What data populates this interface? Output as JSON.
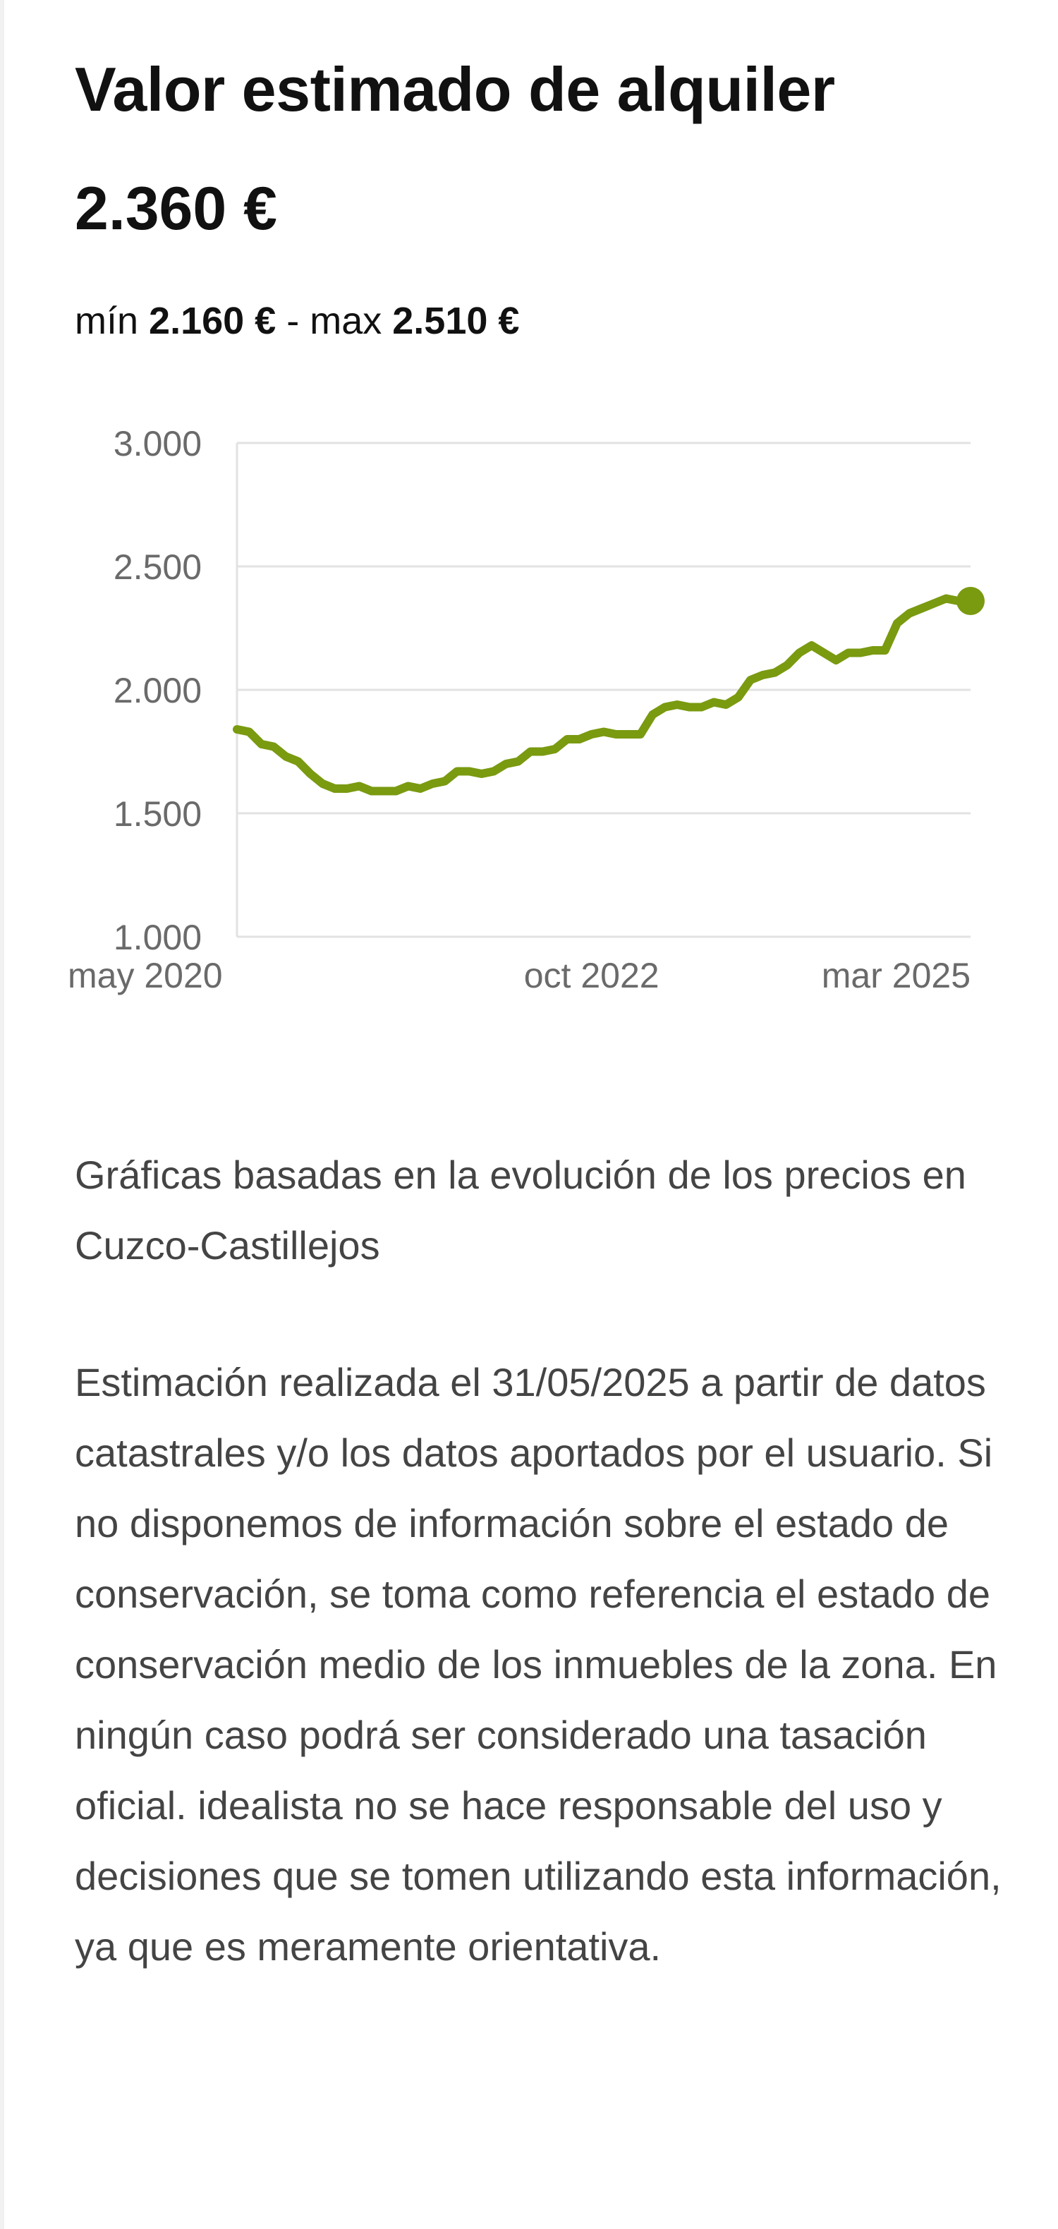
{
  "header": {
    "title": "Valor estimado de alquiler",
    "price": "2.360 €",
    "range_min_label": "mín",
    "range_min_value": "2.160 €",
    "range_separator": "-",
    "range_max_label": "max",
    "range_max_value": "2.510 €"
  },
  "colors": {
    "line": "#7a9a10",
    "grid": "#e2e2e2",
    "axis_text": "#6a6a6a"
  },
  "chart_data": {
    "type": "line",
    "title": "",
    "xlabel": "",
    "ylabel": "",
    "ylim": [
      1000,
      3000
    ],
    "xlim": [
      "2020-05",
      "2025-05"
    ],
    "y_ticks": [
      "3.000",
      "2.500",
      "2.000",
      "1.500",
      "1.000"
    ],
    "y_tick_values": [
      3000,
      2500,
      2000,
      1500,
      1000
    ],
    "x_ticks": [
      "may 2020",
      "oct 2022",
      "mar 2025"
    ],
    "x_tick_values": [
      "2020-05",
      "2022-10",
      "2025-03"
    ],
    "grid": true,
    "legend": "none",
    "series": [
      {
        "x": [
          "2020-05",
          "2020-06",
          "2020-07",
          "2020-08",
          "2020-09",
          "2020-10",
          "2020-11",
          "2020-12",
          "2021-01",
          "2021-02",
          "2021-03",
          "2021-04",
          "2021-05",
          "2021-06",
          "2021-07",
          "2021-08",
          "2021-09",
          "2021-10",
          "2021-11",
          "2021-12",
          "2022-01",
          "2022-02",
          "2022-03",
          "2022-04",
          "2022-05",
          "2022-06",
          "2022-07",
          "2022-08",
          "2022-09",
          "2022-10",
          "2022-11",
          "2022-12",
          "2023-01",
          "2023-02",
          "2023-03",
          "2023-04",
          "2023-05",
          "2023-06",
          "2023-07",
          "2023-08",
          "2023-09",
          "2023-10",
          "2023-11",
          "2023-12",
          "2024-01",
          "2024-02",
          "2024-03",
          "2024-04",
          "2024-05",
          "2024-06",
          "2024-07",
          "2024-08",
          "2024-09",
          "2024-10",
          "2024-11",
          "2024-12",
          "2025-01",
          "2025-02",
          "2025-03",
          "2025-04",
          "2025-05"
        ],
        "values": [
          1840,
          1830,
          1780,
          1770,
          1730,
          1710,
          1660,
          1620,
          1600,
          1600,
          1610,
          1590,
          1590,
          1590,
          1610,
          1600,
          1620,
          1630,
          1670,
          1670,
          1660,
          1670,
          1700,
          1710,
          1750,
          1750,
          1760,
          1800,
          1800,
          1820,
          1830,
          1820,
          1820,
          1820,
          1900,
          1930,
          1940,
          1930,
          1930,
          1950,
          1940,
          1970,
          2040,
          2060,
          2070,
          2100,
          2150,
          2180,
          2150,
          2120,
          2150,
          2150,
          2160,
          2160,
          2270,
          2310,
          2330,
          2350,
          2370,
          2360,
          2360
        ]
      }
    ],
    "highlight_point": {
      "x": "2025-05",
      "y": 2360
    }
  },
  "description": {
    "charts_note": "Gráficas basadas en la evolución de los precios en Cuzco-Castillejos",
    "disclaimer": "Estimación realizada el 31/05/2025 a partir de datos catastrales y/o los datos aportados por el usuario. Si no disponemos de información sobre el estado de conservación, se toma como referencia el estado de conservación medio de los inmuebles de la zona. En ningún caso podrá ser considerado una tasación oficial. idealista no se hace responsable del uso y decisiones que se tomen utilizando esta información, ya que es meramente orientativa."
  }
}
